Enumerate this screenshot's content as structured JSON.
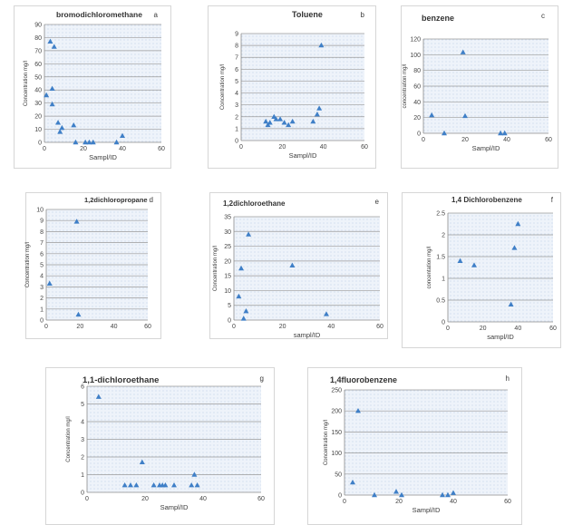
{
  "figure": {
    "background": "#ffffff",
    "plot_fill": "#eef3fa",
    "plot_dot": "#b5c8e3",
    "gridline": "#9a9a9a",
    "axis_color": "#8c8c8c",
    "marker_color": "#3f7fc7"
  },
  "chart_data": [
    {
      "id": "a",
      "type": "scatter",
      "marker": "triangle",
      "title": "bromodichloromethane",
      "panel_letter": "a",
      "xlabel": "Sampl/ID",
      "ylabel": "Concentration mg/l",
      "xlim": [
        0,
        60
      ],
      "xticks": [
        0,
        20,
        40,
        60
      ],
      "ylim": [
        0,
        90
      ],
      "yticks": [
        0,
        10,
        20,
        30,
        40,
        50,
        60,
        70,
        80,
        90
      ],
      "grid": true,
      "x": [
        1,
        3,
        4,
        4,
        5,
        7,
        8,
        9,
        15,
        16,
        21,
        23,
        25,
        37,
        40
      ],
      "y": [
        36,
        77,
        41,
        29,
        73,
        15,
        8,
        11,
        13,
        0,
        0,
        0,
        0,
        0,
        5
      ]
    },
    {
      "id": "b",
      "type": "scatter",
      "marker": "triangle",
      "title": "Toluene",
      "panel_letter": "b",
      "xlabel": "Sampl/ID",
      "ylabel": "Concentration mg/l",
      "xlim": [
        0,
        60
      ],
      "xticks": [
        0,
        20,
        40,
        60
      ],
      "ylim": [
        0,
        9
      ],
      "yticks": [
        0,
        1,
        2,
        3,
        4,
        5,
        6,
        7,
        8,
        9
      ],
      "grid": true,
      "x": [
        12,
        13,
        14,
        16,
        17,
        19,
        21,
        23,
        25,
        35,
        37,
        38,
        39
      ],
      "y": [
        1.6,
        1.3,
        1.5,
        2.0,
        1.8,
        1.8,
        1.5,
        1.3,
        1.6,
        1.6,
        2.2,
        2.7,
        8.0
      ]
    },
    {
      "id": "c",
      "type": "scatter",
      "marker": "triangle",
      "title": "benzene",
      "panel_letter": "c",
      "xlabel": "Sampl/ID",
      "ylabel": "concentration mg/l",
      "xlim": [
        0,
        60
      ],
      "xticks": [
        0,
        20,
        40,
        60
      ],
      "ylim": [
        0,
        120
      ],
      "yticks": [
        0,
        20,
        40,
        60,
        80,
        100,
        120
      ],
      "grid": true,
      "x": [
        4,
        10,
        19,
        20,
        37,
        39
      ],
      "y": [
        23,
        0,
        103,
        22,
        0,
        0
      ]
    },
    {
      "id": "d",
      "type": "scatter",
      "marker": "triangle",
      "title": "1,2dichloropropane",
      "panel_letter": "d",
      "xlabel": "",
      "ylabel": "Concentration mg/l",
      "xlim": [
        0,
        60
      ],
      "xticks": [
        0,
        20,
        40,
        60
      ],
      "ylim": [
        0,
        10
      ],
      "yticks": [
        0,
        1,
        2,
        3,
        4,
        5,
        6,
        7,
        8,
        9,
        10
      ],
      "grid": true,
      "x": [
        2,
        18,
        19
      ],
      "y": [
        3.3,
        8.9,
        0.5
      ]
    },
    {
      "id": "e",
      "type": "scatter",
      "marker": "triangle",
      "title": "1,2dichloroethane",
      "panel_letter": "e",
      "xlabel": "sampl/ID",
      "ylabel": "Concentration mg/l",
      "xlim": [
        0,
        60
      ],
      "xticks": [
        0,
        20,
        40,
        60
      ],
      "ylim": [
        0,
        35
      ],
      "yticks": [
        0,
        5,
        10,
        15,
        20,
        25,
        30,
        35
      ],
      "grid": true,
      "x": [
        2,
        3,
        4,
        5,
        6,
        24,
        38
      ],
      "y": [
        8,
        17.5,
        0.5,
        3,
        29,
        18.5,
        2
      ]
    },
    {
      "id": "f",
      "type": "scatter",
      "marker": "triangle",
      "title": "1,4 Dichlorobenzene",
      "panel_letter": "f",
      "xlabel": "sampl/ID",
      "ylabel": "concentation mg/l",
      "xlim": [
        0,
        60
      ],
      "xticks": [
        0,
        20,
        40,
        60
      ],
      "ylim": [
        0,
        2.5
      ],
      "yticks": [
        0,
        0.5,
        1,
        1.5,
        2,
        2.5
      ],
      "grid": true,
      "x": [
        7,
        15,
        36,
        38,
        40
      ],
      "y": [
        1.4,
        1.3,
        0.4,
        1.7,
        2.25
      ]
    },
    {
      "id": "g",
      "type": "scatter",
      "marker": "triangle",
      "title": "1,1-dichloroethane",
      "panel_letter": "g",
      "xlabel": "Sampl/ID",
      "ylabel": "Concentration mg/l",
      "xlim": [
        0,
        60
      ],
      "xticks": [
        0,
        20,
        40,
        60
      ],
      "ylim": [
        0,
        6
      ],
      "yticks": [
        0,
        1,
        2,
        3,
        4,
        5,
        6
      ],
      "grid": true,
      "x": [
        4,
        13,
        15,
        17,
        19,
        23,
        25,
        26,
        27,
        30,
        36,
        37,
        38
      ],
      "y": [
        5.4,
        0.4,
        0.4,
        0.4,
        1.7,
        0.4,
        0.4,
        0.4,
        0.4,
        0.4,
        0.4,
        1.0,
        0.4
      ]
    },
    {
      "id": "h",
      "type": "scatter",
      "marker": "triangle",
      "title": "1,4fluorobenzene",
      "panel_letter": "h",
      "xlabel": "Sampl/ID",
      "ylabel": "Concentration mg/l",
      "xlim": [
        0,
        60
      ],
      "xticks": [
        0,
        20,
        40,
        60
      ],
      "ylim": [
        0,
        250
      ],
      "yticks": [
        0,
        50,
        100,
        150,
        200,
        250
      ],
      "grid": true,
      "x": [
        3,
        5,
        11,
        19,
        21,
        36,
        38,
        40
      ],
      "y": [
        30,
        200,
        0,
        8,
        0,
        0,
        0,
        5
      ]
    }
  ]
}
